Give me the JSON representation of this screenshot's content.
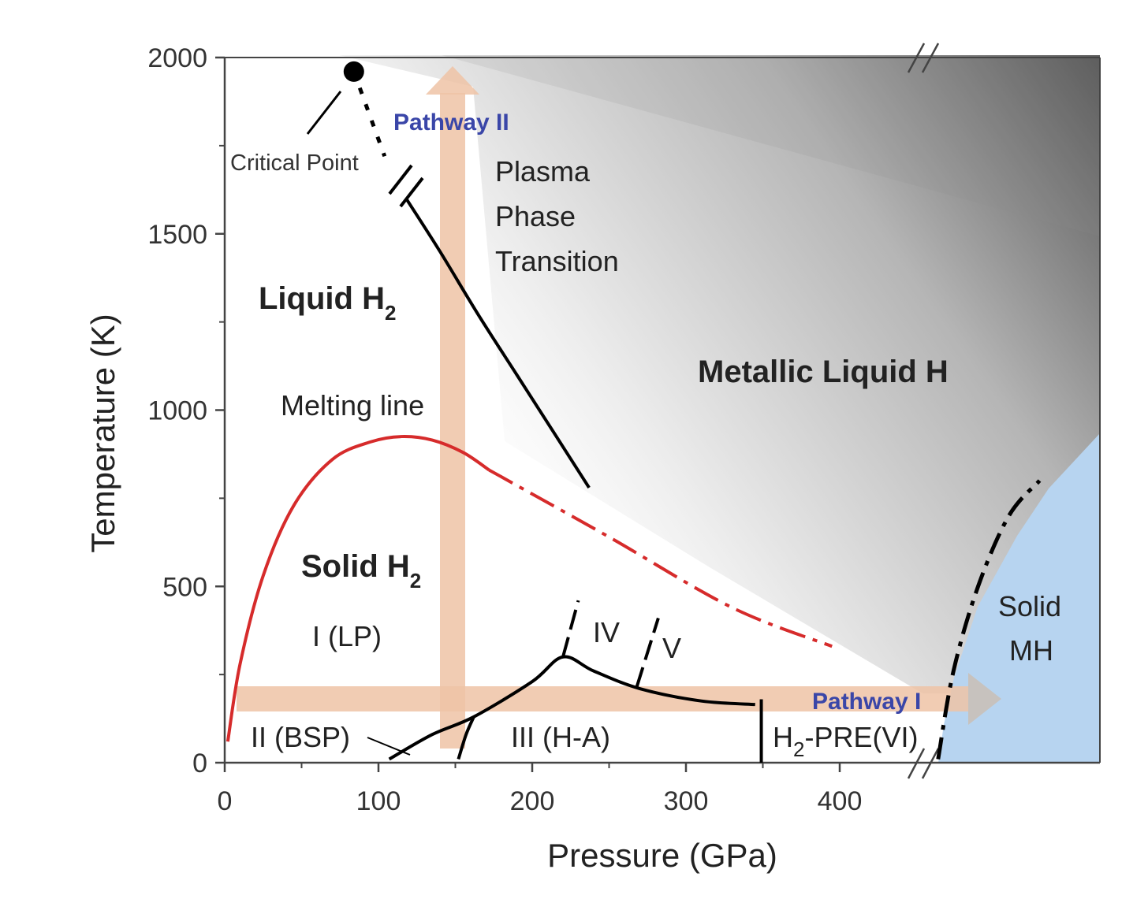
{
  "chart_data": {
    "type": "line",
    "xlabel": "Pressure (GPa)",
    "ylabel": "Temperature (K)",
    "xlim": [
      0,
      570
    ],
    "ylim": [
      0,
      2000
    ],
    "x_ticks": [
      "0",
      "100",
      "200",
      "300",
      "400"
    ],
    "y_ticks": [
      "0",
      "500",
      "1000",
      "1500",
      "2000"
    ],
    "axis_break": "after 460 GPa",
    "grid": false,
    "colors": {
      "melting_line": "#d62b2b",
      "boundary": "#000000",
      "pathway": "#efc3a6",
      "solid_mh_region": "#b7d4f0",
      "metallic_gradient_dark": "#555555",
      "pathway_label": "#3a46a8"
    },
    "series": [
      {
        "values": [
          [
            2,
            60
          ],
          [
            10,
            280
          ],
          [
            25,
            530
          ],
          [
            45,
            730
          ],
          [
            70,
            860
          ],
          [
            95,
            910
          ],
          [
            115,
            925
          ],
          [
            135,
            915
          ],
          [
            155,
            880
          ],
          [
            172,
            830
          ]
        ]
      },
      {
        "values": [
          [
            172,
            830
          ],
          [
            250,
            640
          ],
          [
            330,
            440
          ],
          [
            395,
            330
          ]
        ]
      },
      {
        "values": [
          [
            118,
            1600
          ],
          [
            140,
            1450
          ],
          [
            165,
            1270
          ],
          [
            190,
            1100
          ],
          [
            215,
            930
          ],
          [
            237,
            780
          ]
        ]
      },
      {
        "values": [
          [
            84,
            1960
          ],
          [
            104,
            1720
          ]
        ]
      },
      {
        "values": [
          [
            107,
            10
          ],
          [
            135,
            80
          ],
          [
            162,
            130
          ],
          [
            200,
            230
          ],
          [
            220,
            300
          ],
          [
            240,
            260
          ],
          [
            270,
            210
          ],
          [
            310,
            175
          ],
          [
            345,
            165
          ]
        ]
      },
      {
        "values": [
          [
            152,
            10
          ],
          [
            157,
            80
          ],
          [
            162,
            130
          ]
        ]
      },
      {
        "values": [
          [
            220,
            300
          ],
          [
            230,
            460
          ]
        ]
      },
      {
        "values": [
          [
            268,
            215
          ],
          [
            282,
            410
          ]
        ]
      },
      {
        "values": [
          [
            349,
            180
          ],
          [
            349,
            0
          ]
        ]
      },
      {
        "values": [
          [
            464,
            10
          ],
          [
            474,
            260
          ],
          [
            490,
            500
          ],
          [
            510,
            700
          ],
          [
            530,
            800
          ]
        ]
      }
    ],
    "critical_point": {
      "x": 84,
      "y": 1960,
      "label": "Critical Point"
    },
    "annotations": {
      "melting_line": "Melting line",
      "pathway_1": "Pathway I",
      "pathway_2": "Pathway II",
      "plasma": [
        "Plasma",
        "Phase",
        "Transition"
      ],
      "liquid_h2": {
        "text": "Liquid H",
        "sub": "2"
      },
      "solid_h2": {
        "text": "Solid H",
        "sub": "2"
      },
      "metallic": "Metallic Liquid H",
      "solid_mh": [
        "Solid",
        "MH"
      ],
      "phase_1": "I (LP)",
      "phase_2": "II (BSP)",
      "phase_3": "III (H-A)",
      "phase_4": "IV",
      "phase_5": "V",
      "phase_6": {
        "pre": "H",
        "sub": "2",
        "post": "-PRE(VI)"
      }
    }
  }
}
